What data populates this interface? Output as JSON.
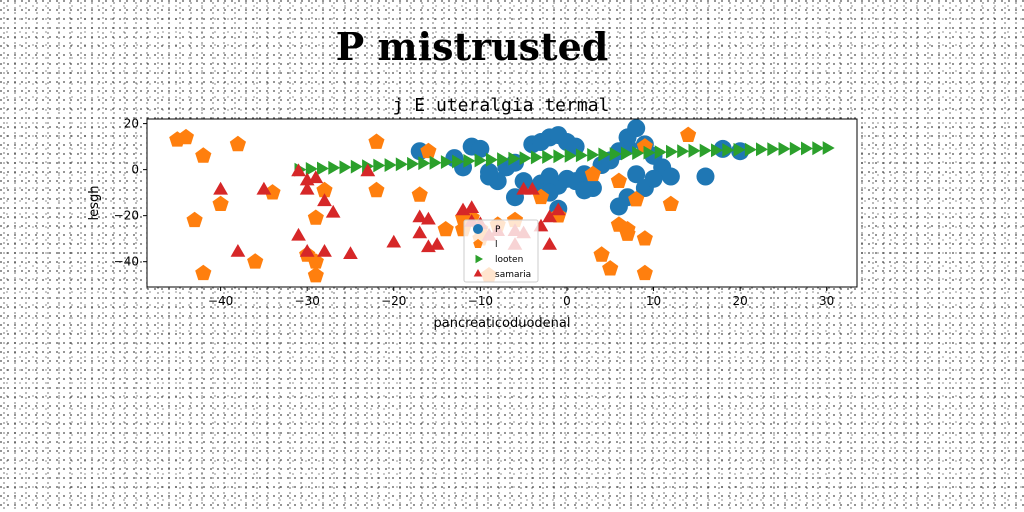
{
  "figure_title": "P mistrusted",
  "chart_data": {
    "type": "scatter",
    "title": "j E uteralgia termal",
    "xlabel": "pancreaticoduodenal",
    "ylabel": "lesgh",
    "xlim": [
      -48.5,
      33.5
    ],
    "ylim": [
      -51,
      22
    ],
    "xticks": [
      -40,
      -30,
      -20,
      -10,
      0,
      10,
      20,
      30
    ],
    "yticks": [
      -40,
      -20,
      0,
      20
    ],
    "legend_position": "lower center",
    "series": [
      {
        "name": "P",
        "color": "#1f77b4",
        "marker": "circle",
        "points": [
          [
            -17,
            8
          ],
          [
            -13,
            5
          ],
          [
            -11,
            10
          ],
          [
            -10,
            9
          ],
          [
            -12,
            1
          ],
          [
            -9,
            -1
          ],
          [
            -7,
            1
          ],
          [
            -6,
            3
          ],
          [
            -4,
            11
          ],
          [
            -3,
            12
          ],
          [
            -2,
            14
          ],
          [
            -1,
            15
          ],
          [
            0,
            12
          ],
          [
            1,
            10
          ],
          [
            -3,
            -6
          ],
          [
            -2,
            -3
          ],
          [
            -1,
            -7
          ],
          [
            0,
            -4
          ],
          [
            1,
            -5
          ],
          [
            2,
            -2
          ],
          [
            3,
            -8
          ],
          [
            4,
            2
          ],
          [
            5,
            4
          ],
          [
            6,
            8
          ],
          [
            7,
            10
          ],
          [
            7,
            14
          ],
          [
            8,
            18
          ],
          [
            9,
            11
          ],
          [
            10,
            6
          ],
          [
            11,
            1
          ],
          [
            12,
            -3
          ],
          [
            8,
            -2
          ],
          [
            9,
            -8
          ],
          [
            10,
            -4
          ],
          [
            7,
            -12
          ],
          [
            6,
            -16
          ],
          [
            -1,
            -17
          ],
          [
            -2,
            -10
          ],
          [
            -5,
            -5
          ],
          [
            -8,
            -5
          ],
          [
            -9,
            -3
          ],
          [
            -6,
            -12
          ],
          [
            16,
            -3
          ],
          [
            18,
            9
          ],
          [
            20,
            8
          ],
          [
            2,
            -9
          ]
        ]
      },
      {
        "name": "l",
        "color": "#ff7f0e",
        "marker": "pentagon",
        "points": [
          [
            -45,
            13
          ],
          [
            -44,
            14
          ],
          [
            -42,
            6
          ],
          [
            -38,
            11
          ],
          [
            -43,
            -22
          ],
          [
            -40,
            -15
          ],
          [
            -34,
            -10
          ],
          [
            -29,
            -21
          ],
          [
            -28,
            -9
          ],
          [
            -30,
            -37
          ],
          [
            -29,
            -40
          ],
          [
            -29,
            -46
          ],
          [
            -36,
            -40
          ],
          [
            -42,
            -45
          ],
          [
            -22,
            12
          ],
          [
            -22,
            -9
          ],
          [
            -17,
            -11
          ],
          [
            -16,
            8
          ],
          [
            -12,
            -21
          ],
          [
            -11,
            -21
          ],
          [
            -14,
            -26
          ],
          [
            -12,
            -26
          ],
          [
            -10,
            -30
          ],
          [
            -9,
            -46
          ],
          [
            -10,
            -26
          ],
          [
            -8,
            -24
          ],
          [
            -6,
            -22
          ],
          [
            -3,
            -12
          ],
          [
            -1,
            -20
          ],
          [
            3,
            -2
          ],
          [
            4,
            -37
          ],
          [
            5,
            -43
          ],
          [
            6,
            -5
          ],
          [
            6,
            -24
          ],
          [
            7,
            -26
          ],
          [
            7,
            -28
          ],
          [
            9,
            -30
          ],
          [
            9,
            -45
          ],
          [
            9,
            10
          ],
          [
            12,
            -15
          ],
          [
            14,
            15
          ],
          [
            8,
            -13
          ]
        ]
      },
      {
        "name": "looten",
        "color": "#2ca02c",
        "marker": "triangle-right",
        "points": [
          [
            -31,
            0
          ],
          [
            -29.7,
            0.3
          ],
          [
            -28.4,
            0.5
          ],
          [
            -27.1,
            0.8
          ],
          [
            -25.8,
            1
          ],
          [
            -24.5,
            1.3
          ],
          [
            -23.2,
            1.5
          ],
          [
            -21.9,
            1.8
          ],
          [
            -20.6,
            2
          ],
          [
            -19.3,
            2.3
          ],
          [
            -18,
            2.5
          ],
          [
            -16.7,
            2.8
          ],
          [
            -15.4,
            3
          ],
          [
            -14.1,
            3.3
          ],
          [
            -12.8,
            3.5
          ],
          [
            -11.5,
            3.8
          ],
          [
            -10.2,
            4
          ],
          [
            -8.9,
            4.3
          ],
          [
            -7.6,
            4.5
          ],
          [
            -6.3,
            4.8
          ],
          [
            -5,
            5
          ],
          [
            -3.7,
            5.3
          ],
          [
            -2.4,
            5.5
          ],
          [
            -1.1,
            5.8
          ],
          [
            0.2,
            6
          ],
          [
            1.5,
            6.2
          ],
          [
            2.8,
            6.4
          ],
          [
            4.1,
            6.6
          ],
          [
            5.4,
            6.8
          ],
          [
            6.7,
            7
          ],
          [
            8,
            7.2
          ],
          [
            9.3,
            7.4
          ],
          [
            10.6,
            7.6
          ],
          [
            11.9,
            7.8
          ],
          [
            13.2,
            8
          ],
          [
            14.5,
            8.2
          ],
          [
            15.8,
            8.3
          ],
          [
            17.1,
            8.4
          ],
          [
            18.4,
            8.5
          ],
          [
            19.7,
            8.6
          ],
          [
            21,
            8.7
          ],
          [
            22.3,
            8.8
          ],
          [
            23.6,
            8.9
          ],
          [
            24.9,
            9
          ],
          [
            26.2,
            9.1
          ],
          [
            27.5,
            9.2
          ],
          [
            28.8,
            9.3
          ],
          [
            30,
            9.4
          ]
        ]
      },
      {
        "name": "samaria",
        "color": "#d62728",
        "marker": "triangle-up",
        "points": [
          [
            -40,
            -9
          ],
          [
            -35,
            -9
          ],
          [
            -31,
            -1
          ],
          [
            -30,
            -5
          ],
          [
            -29,
            -4
          ],
          [
            -30,
            -9
          ],
          [
            -28,
            -14
          ],
          [
            -27,
            -19
          ],
          [
            -31,
            -29
          ],
          [
            -30,
            -36
          ],
          [
            -28,
            -36
          ],
          [
            -25,
            -37
          ],
          [
            -38,
            -36
          ],
          [
            -23,
            -1
          ],
          [
            -20,
            -32
          ],
          [
            -17,
            -28
          ],
          [
            -16,
            -34
          ],
          [
            -15,
            -33
          ],
          [
            -17,
            -21
          ],
          [
            -16,
            -22
          ],
          [
            -12,
            -18
          ],
          [
            -11,
            -17
          ],
          [
            -11,
            -23
          ],
          [
            -10,
            -24
          ],
          [
            -9,
            -29
          ],
          [
            -8,
            -27
          ],
          [
            -6,
            -27
          ],
          [
            -5,
            -9
          ],
          [
            -4,
            -9
          ],
          [
            -3,
            -25
          ],
          [
            -2,
            -21
          ],
          [
            -2,
            -33
          ],
          [
            -1,
            -18
          ],
          [
            -5,
            -28
          ],
          [
            -6,
            -33
          ]
        ]
      }
    ]
  }
}
